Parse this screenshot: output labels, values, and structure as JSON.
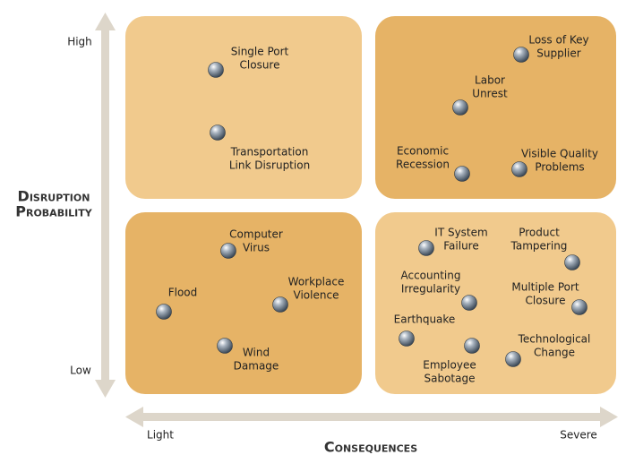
{
  "y_axis": {
    "label": [
      "Disruption",
      "Probability"
    ],
    "high": "High",
    "low": "Low"
  },
  "x_axis": {
    "label": "Consequences",
    "light": "Light",
    "severe": "Severe"
  },
  "quadrants": [
    {
      "items": [
        {
          "label": [
            "Single Port",
            "Closure"
          ]
        },
        {
          "label": [
            "Transportation",
            "Link Disruption"
          ]
        }
      ]
    },
    {
      "items": [
        {
          "label": [
            "Loss of Key",
            "Supplier"
          ]
        },
        {
          "label": [
            "Labor",
            "Unrest"
          ]
        },
        {
          "label": [
            "Economic",
            "Recession"
          ]
        },
        {
          "label": [
            "Visible Quality",
            "Problems"
          ]
        }
      ]
    },
    {
      "items": [
        {
          "label": [
            "Computer",
            "Virus"
          ]
        },
        {
          "label": [
            "Flood"
          ]
        },
        {
          "label": [
            "Workplace",
            "Violence"
          ]
        },
        {
          "label": [
            "Wind",
            "Damage"
          ]
        }
      ]
    },
    {
      "items": [
        {
          "label": [
            "IT System",
            "Failure"
          ]
        },
        {
          "label": [
            "Product",
            "Tampering"
          ]
        },
        {
          "label": [
            "Accounting",
            "Irregularity"
          ]
        },
        {
          "label": [
            "Multiple Port",
            "Closure"
          ]
        },
        {
          "label": [
            "Earthquake"
          ]
        },
        {
          "label": [
            "Employee",
            "Sabotage"
          ]
        },
        {
          "label": [
            "Technological",
            "Change"
          ]
        }
      ]
    }
  ]
}
